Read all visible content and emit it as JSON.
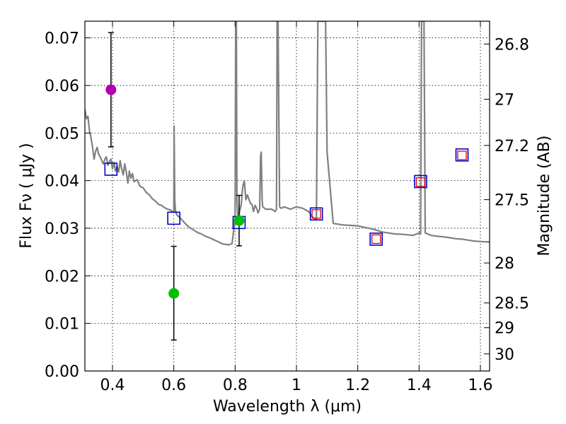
{
  "chart_data": {
    "type": "scatter",
    "title": "",
    "xlabel": "Wavelength  λ (μm)",
    "ylabel": "Flux  Fν  ( μJy )",
    "ylabel2": "Magnitude (AB)",
    "xlim": [
      0.31,
      1.63
    ],
    "ylim": [
      0.0,
      0.0735
    ],
    "x_ticks": [
      0.4,
      0.6,
      0.8,
      1.0,
      1.2,
      1.4,
      1.6
    ],
    "x_tick_labels": [
      "0.4",
      "0.6",
      "0.8",
      "1",
      "1.2",
      "1.4",
      "1.6"
    ],
    "y_ticks": [
      0.0,
      0.01,
      0.02,
      0.03,
      0.04,
      0.05,
      0.06,
      0.07
    ],
    "y_tick_labels": [
      "0.00",
      "0.01",
      "0.02",
      "0.03",
      "0.04",
      "0.05",
      "0.06",
      "0.07"
    ],
    "right_ticks": [
      {
        "label": "26.8",
        "flux": 0.0687
      },
      {
        "label": "27",
        "flux": 0.0571
      },
      {
        "label": "27.2",
        "flux": 0.0474
      },
      {
        "label": "27.5",
        "flux": 0.036
      },
      {
        "label": "28",
        "flux": 0.0227
      },
      {
        "label": "28.5",
        "flux": 0.0143
      },
      {
        "label": "29",
        "flux": 0.0091
      },
      {
        "label": "30",
        "flux": 0.0036
      }
    ],
    "grid": true,
    "colors": {
      "model": "#808080",
      "magenta": "#b000b0",
      "green": "#00c000",
      "blue_box": "#0000cc",
      "red_box": "#dd0000",
      "errorbar": "#000000"
    },
    "model_spectrum": {
      "name": "model SED",
      "x": [
        0.31,
        0.315,
        0.32,
        0.325,
        0.33,
        0.335,
        0.34,
        0.345,
        0.35,
        0.355,
        0.36,
        0.365,
        0.37,
        0.375,
        0.38,
        0.385,
        0.39,
        0.395,
        0.4,
        0.405,
        0.41,
        0.415,
        0.42,
        0.425,
        0.43,
        0.435,
        0.44,
        0.445,
        0.45,
        0.455,
        0.46,
        0.465,
        0.47,
        0.48,
        0.49,
        0.5,
        0.51,
        0.52,
        0.53,
        0.54,
        0.55,
        0.56,
        0.57,
        0.58,
        0.59,
        0.595,
        0.6,
        0.601,
        0.603,
        0.605,
        0.606,
        0.61,
        0.62,
        0.63,
        0.64,
        0.65,
        0.66,
        0.67,
        0.68,
        0.69,
        0.7,
        0.72,
        0.74,
        0.76,
        0.78,
        0.79,
        0.8,
        0.802,
        0.803,
        0.804,
        0.806,
        0.808,
        0.81,
        0.82,
        0.825,
        0.83,
        0.835,
        0.84,
        0.85,
        0.855,
        0.86,
        0.865,
        0.87,
        0.875,
        0.88,
        0.883,
        0.885,
        0.888,
        0.89,
        0.9,
        0.92,
        0.93,
        0.935,
        0.937,
        0.94,
        0.945,
        0.95,
        0.96,
        0.98,
        1.0,
        1.02,
        1.04,
        1.05,
        1.06,
        1.065,
        1.07,
        1.075,
        1.08,
        1.09,
        1.095,
        1.1,
        1.12,
        1.15,
        1.2,
        1.25,
        1.28,
        1.3,
        1.32,
        1.35,
        1.38,
        1.4,
        1.405,
        1.408,
        1.41,
        1.413,
        1.416,
        1.42,
        1.44,
        1.46,
        1.48,
        1.5,
        1.52,
        1.54,
        1.56,
        1.58,
        1.6,
        1.63
      ],
      "y": [
        0.055,
        0.053,
        0.0535,
        0.0505,
        0.049,
        0.047,
        0.0445,
        0.0462,
        0.047,
        0.0455,
        0.045,
        0.0442,
        0.0435,
        0.0445,
        0.045,
        0.0432,
        0.044,
        0.0445,
        0.0425,
        0.0438,
        0.042,
        0.043,
        0.0418,
        0.0442,
        0.0425,
        0.0412,
        0.0435,
        0.0418,
        0.0395,
        0.042,
        0.0405,
        0.0415,
        0.0398,
        0.0402,
        0.0388,
        0.0385,
        0.0375,
        0.037,
        0.0362,
        0.0357,
        0.035,
        0.0348,
        0.0343,
        0.034,
        0.0338,
        0.0335,
        0.0335,
        0.0515,
        0.036,
        0.034,
        0.0335,
        0.0328,
        0.0322,
        0.0315,
        0.0308,
        0.0302,
        0.0298,
        0.0294,
        0.029,
        0.0288,
        0.0284,
        0.0279,
        0.0273,
        0.0267,
        0.0265,
        0.0268,
        0.032,
        0.0735,
        0.0735,
        0.0735,
        0.036,
        0.033,
        0.0322,
        0.035,
        0.0388,
        0.04,
        0.036,
        0.037,
        0.0352,
        0.035,
        0.0335,
        0.0348,
        0.0342,
        0.0332,
        0.034,
        0.045,
        0.046,
        0.036,
        0.0345,
        0.034,
        0.034,
        0.0335,
        0.034,
        0.0735,
        0.0735,
        0.0345,
        0.0342,
        0.0345,
        0.034,
        0.0345,
        0.0342,
        0.0335,
        0.0325,
        0.032,
        0.0318,
        0.0735,
        0.0735,
        0.0735,
        0.0735,
        0.0735,
        0.046,
        0.031,
        0.0307,
        0.0305,
        0.0298,
        0.0292,
        0.029,
        0.0288,
        0.0287,
        0.0285,
        0.029,
        0.0288,
        0.0735,
        0.0735,
        0.0735,
        0.0735,
        0.029,
        0.0285,
        0.0283,
        0.0282,
        0.028,
        0.0278,
        0.0277,
        0.0275,
        0.0273,
        0.0272,
        0.0271
      ]
    },
    "model_points": {
      "name": "model photometry (blue boxes)",
      "x": [
        0.395,
        0.6,
        0.813,
        1.065,
        1.26,
        1.405,
        1.54
      ],
      "y": [
        0.0424,
        0.0321,
        0.0312,
        0.033,
        0.0277,
        0.0398,
        0.0454
      ]
    },
    "red_points": {
      "name": "observed (red boxes)",
      "x": [
        1.065,
        1.26,
        1.405,
        1.54
      ],
      "y": [
        0.033,
        0.0277,
        0.0397,
        0.0453
      ]
    },
    "magenta_points": {
      "name": "magenta detection",
      "x": [
        0.395
      ],
      "y": [
        0.0591
      ],
      "err_low": [
        0.0471
      ],
      "err_high": [
        0.0711
      ]
    },
    "green_points": {
      "name": "green detections",
      "x": [
        0.6,
        0.813
      ],
      "y": [
        0.0163,
        0.0316
      ],
      "err_low": [
        0.0065,
        0.0263
      ],
      "err_high": [
        0.0262,
        0.0369
      ]
    }
  }
}
